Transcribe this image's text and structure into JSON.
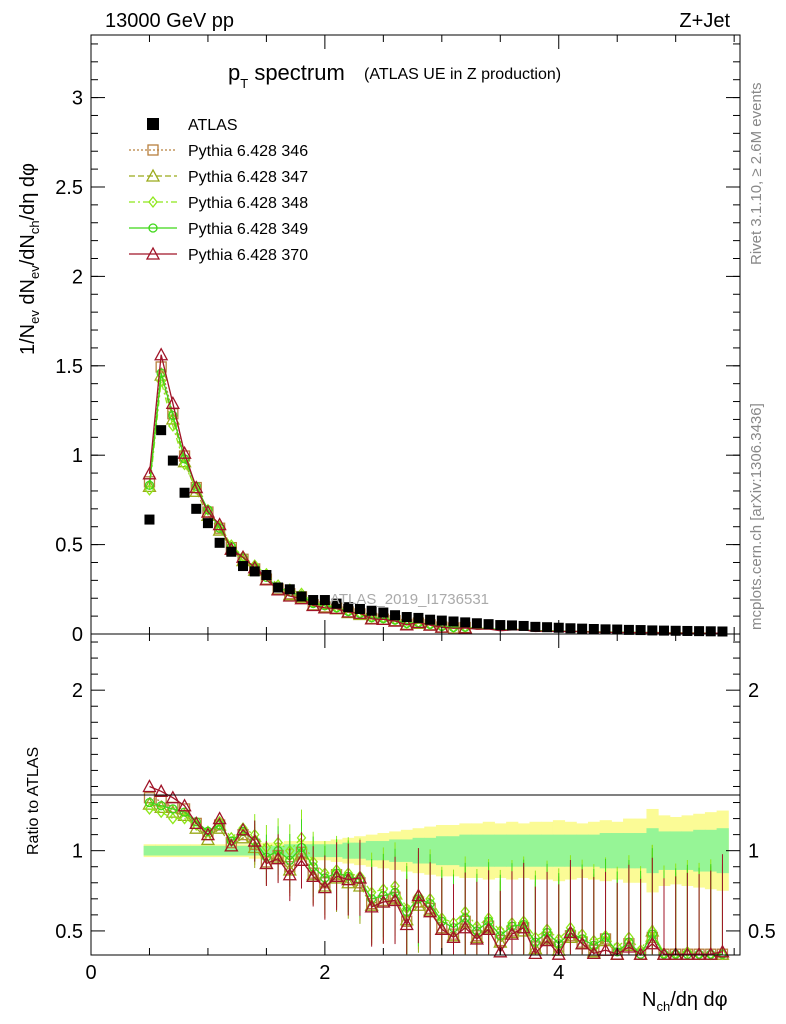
{
  "header": {
    "beam": "13000 GeV pp",
    "process": "Z+Jet",
    "title_main": "p",
    "title_sub": "T",
    "title_rest": " spectrum",
    "title_paren": "(ATLAS UE in Z production)",
    "watermark": "ATLAS_2019_I1736531",
    "side_rivet": "Rivet 3.1.10, ≥ 2.6M events",
    "side_mcplots": "mcplots.cern.ch [arXiv:1306.3436]"
  },
  "axes": {
    "ylabel_main": "1/N_ev dN_ev/dN_ch/dη dφ",
    "ylabel_ratio": "Ratio to ATLAS",
    "xlabel": "N_ch/dη dφ",
    "main_yticks": [
      "0",
      "0.5",
      "1",
      "1.5",
      "2",
      "2.5",
      "3"
    ],
    "ratio_yticks": [
      "0.5",
      "1",
      "2"
    ],
    "xticks": [
      "0",
      "2",
      "4"
    ]
  },
  "colors": {
    "atlas": "#000000",
    "p346": "#b8803e",
    "p347": "#9aaa1a",
    "p348": "#8ee81a",
    "p349": "#3ed818",
    "p370": "#a01428",
    "band_yellow": "#fbfb96",
    "band_green": "#96f596"
  },
  "chart_data": {
    "type": "scatter",
    "x_range": [
      0,
      5.55
    ],
    "main_ylim": [
      0,
      3.35
    ],
    "ratio_ylim": [
      0.35,
      2.35
    ],
    "legend_position": "top-left",
    "legend": [
      "ATLAS",
      "Pythia 6.428 346",
      "Pythia 6.428 347",
      "Pythia 6.428 348",
      "Pythia 6.428 349",
      "Pythia 6.428 370"
    ],
    "x": [
      0.5,
      0.6,
      0.7,
      0.8,
      0.9,
      1.0,
      1.1,
      1.2,
      1.3,
      1.4,
      1.5,
      1.6,
      1.7,
      1.8,
      1.9,
      2.0,
      2.1,
      2.2,
      2.3,
      2.4,
      2.5,
      2.6,
      2.7,
      2.8,
      2.9,
      3.0,
      3.1,
      3.2,
      3.3,
      3.4,
      3.5,
      3.6,
      3.7,
      3.8,
      3.9,
      4.0,
      4.1,
      4.2,
      4.3,
      4.4,
      4.5,
      4.6,
      4.7,
      4.8,
      4.9,
      5.0,
      5.1,
      5.2,
      5.3,
      5.4
    ],
    "atlas_values": [
      0.64,
      1.14,
      0.97,
      0.79,
      0.7,
      0.62,
      0.51,
      0.46,
      0.38,
      0.35,
      0.33,
      0.26,
      0.25,
      0.21,
      0.19,
      0.19,
      0.17,
      0.15,
      0.14,
      0.13,
      0.12,
      0.105,
      0.095,
      0.09,
      0.08,
      0.075,
      0.07,
      0.065,
      0.06,
      0.055,
      0.05,
      0.048,
      0.045,
      0.04,
      0.038,
      0.035,
      0.032,
      0.03,
      0.028,
      0.026,
      0.025,
      0.023,
      0.022,
      0.02,
      0.019,
      0.018,
      0.017,
      0.016,
      0.015,
      0.014
    ],
    "series": [
      {
        "name": "Pythia 6.428 346",
        "ratio": [
          1.33,
          1.31,
          1.27,
          1.26,
          1.17,
          1.1,
          1.16,
          1.05,
          1.1,
          1.04,
          0.93,
          0.97,
          0.9,
          0.99,
          0.86,
          0.8,
          0.85,
          0.82,
          0.8,
          0.67,
          0.69,
          0.71,
          0.56,
          0.68,
          0.64,
          0.52,
          0.48,
          0.56,
          0.47,
          0.53,
          0.44,
          0.5,
          0.52,
          0.4,
          0.46,
          0.4,
          0.47,
          0.43,
          0.38,
          0.45,
          0.33,
          0.42,
          0.32,
          0.46,
          0.3,
          0.31,
          0.32,
          0.29,
          0.31,
          0.3
        ]
      },
      {
        "name": "Pythia 6.428 347",
        "ratio": [
          1.29,
          1.27,
          1.24,
          1.22,
          1.14,
          1.07,
          1.14,
          1.03,
          1.08,
          1.02,
          0.92,
          0.96,
          0.88,
          0.98,
          0.85,
          0.78,
          0.83,
          0.8,
          0.78,
          0.66,
          0.68,
          0.7,
          0.57,
          0.66,
          0.63,
          0.51,
          0.47,
          0.55,
          0.46,
          0.52,
          0.43,
          0.49,
          0.5,
          0.39,
          0.45,
          0.38,
          0.46,
          0.42,
          0.37,
          0.44,
          0.32,
          0.41,
          0.31,
          0.5,
          0.29,
          0.3,
          0.31,
          0.28,
          0.3,
          0.29
        ]
      },
      {
        "name": "Pythia 6.428 348",
        "ratio": [
          1.26,
          1.24,
          1.2,
          1.2,
          1.16,
          1.12,
          1.18,
          1.08,
          1.14,
          1.1,
          1.02,
          1.05,
          1.0,
          1.08,
          0.93,
          0.86,
          0.88,
          0.86,
          0.84,
          0.74,
          0.76,
          0.78,
          0.64,
          0.72,
          0.7,
          0.58,
          0.55,
          0.62,
          0.53,
          0.58,
          0.5,
          0.55,
          0.56,
          0.46,
          0.51,
          0.45,
          0.52,
          0.48,
          0.44,
          0.47,
          0.4,
          0.46,
          0.38,
          0.5,
          0.36,
          0.36,
          0.37,
          0.34,
          0.35,
          0.34
        ]
      },
      {
        "name": "Pythia 6.428 349",
        "ratio": [
          1.3,
          1.28,
          1.26,
          1.24,
          1.18,
          1.12,
          1.16,
          1.06,
          1.12,
          1.06,
          0.96,
          1.0,
          0.94,
          1.02,
          0.9,
          0.83,
          0.86,
          0.84,
          0.82,
          0.7,
          0.72,
          0.74,
          0.62,
          0.7,
          0.67,
          0.56,
          0.52,
          0.58,
          0.5,
          0.56,
          0.47,
          0.53,
          0.54,
          0.43,
          0.49,
          0.42,
          0.49,
          0.45,
          0.41,
          0.46,
          0.37,
          0.43,
          0.35,
          0.48,
          0.33,
          0.33,
          0.34,
          0.31,
          0.32,
          0.31
        ]
      },
      {
        "name": "Pythia 6.428 370",
        "ratio": [
          1.4,
          1.37,
          1.33,
          1.28,
          1.17,
          1.1,
          1.2,
          1.03,
          1.13,
          1.06,
          0.92,
          0.95,
          0.85,
          0.94,
          0.84,
          0.77,
          0.84,
          0.82,
          0.83,
          0.65,
          0.68,
          0.69,
          0.54,
          0.72,
          0.62,
          0.51,
          0.46,
          0.52,
          0.45,
          0.51,
          0.37,
          0.48,
          0.52,
          0.36,
          0.44,
          0.35,
          0.49,
          0.42,
          0.36,
          0.38,
          0.3,
          0.4,
          0.3,
          0.42,
          0.28,
          0.28,
          0.29,
          0.27,
          0.28,
          0.37
        ]
      }
    ],
    "band_yellow_halfwidth": [
      0.04,
      0.04,
      0.04,
      0.04,
      0.04,
      0.04,
      0.04,
      0.04,
      0.04,
      0.05,
      0.05,
      0.05,
      0.06,
      0.06,
      0.06,
      0.06,
      0.07,
      0.08,
      0.09,
      0.1,
      0.11,
      0.12,
      0.13,
      0.14,
      0.15,
      0.16,
      0.16,
      0.17,
      0.17,
      0.18,
      0.17,
      0.18,
      0.17,
      0.18,
      0.18,
      0.19,
      0.18,
      0.17,
      0.18,
      0.19,
      0.18,
      0.2,
      0.2,
      0.26,
      0.22,
      0.21,
      0.22,
      0.23,
      0.24,
      0.25
    ],
    "band_green_halfwidth": [
      0.03,
      0.03,
      0.03,
      0.03,
      0.03,
      0.03,
      0.03,
      0.03,
      0.03,
      0.03,
      0.03,
      0.03,
      0.04,
      0.04,
      0.04,
      0.04,
      0.04,
      0.05,
      0.05,
      0.06,
      0.06,
      0.07,
      0.07,
      0.08,
      0.08,
      0.09,
      0.09,
      0.1,
      0.1,
      0.1,
      0.1,
      0.1,
      0.1,
      0.1,
      0.1,
      0.1,
      0.1,
      0.1,
      0.1,
      0.11,
      0.11,
      0.11,
      0.11,
      0.14,
      0.12,
      0.12,
      0.12,
      0.13,
      0.13,
      0.14
    ]
  }
}
